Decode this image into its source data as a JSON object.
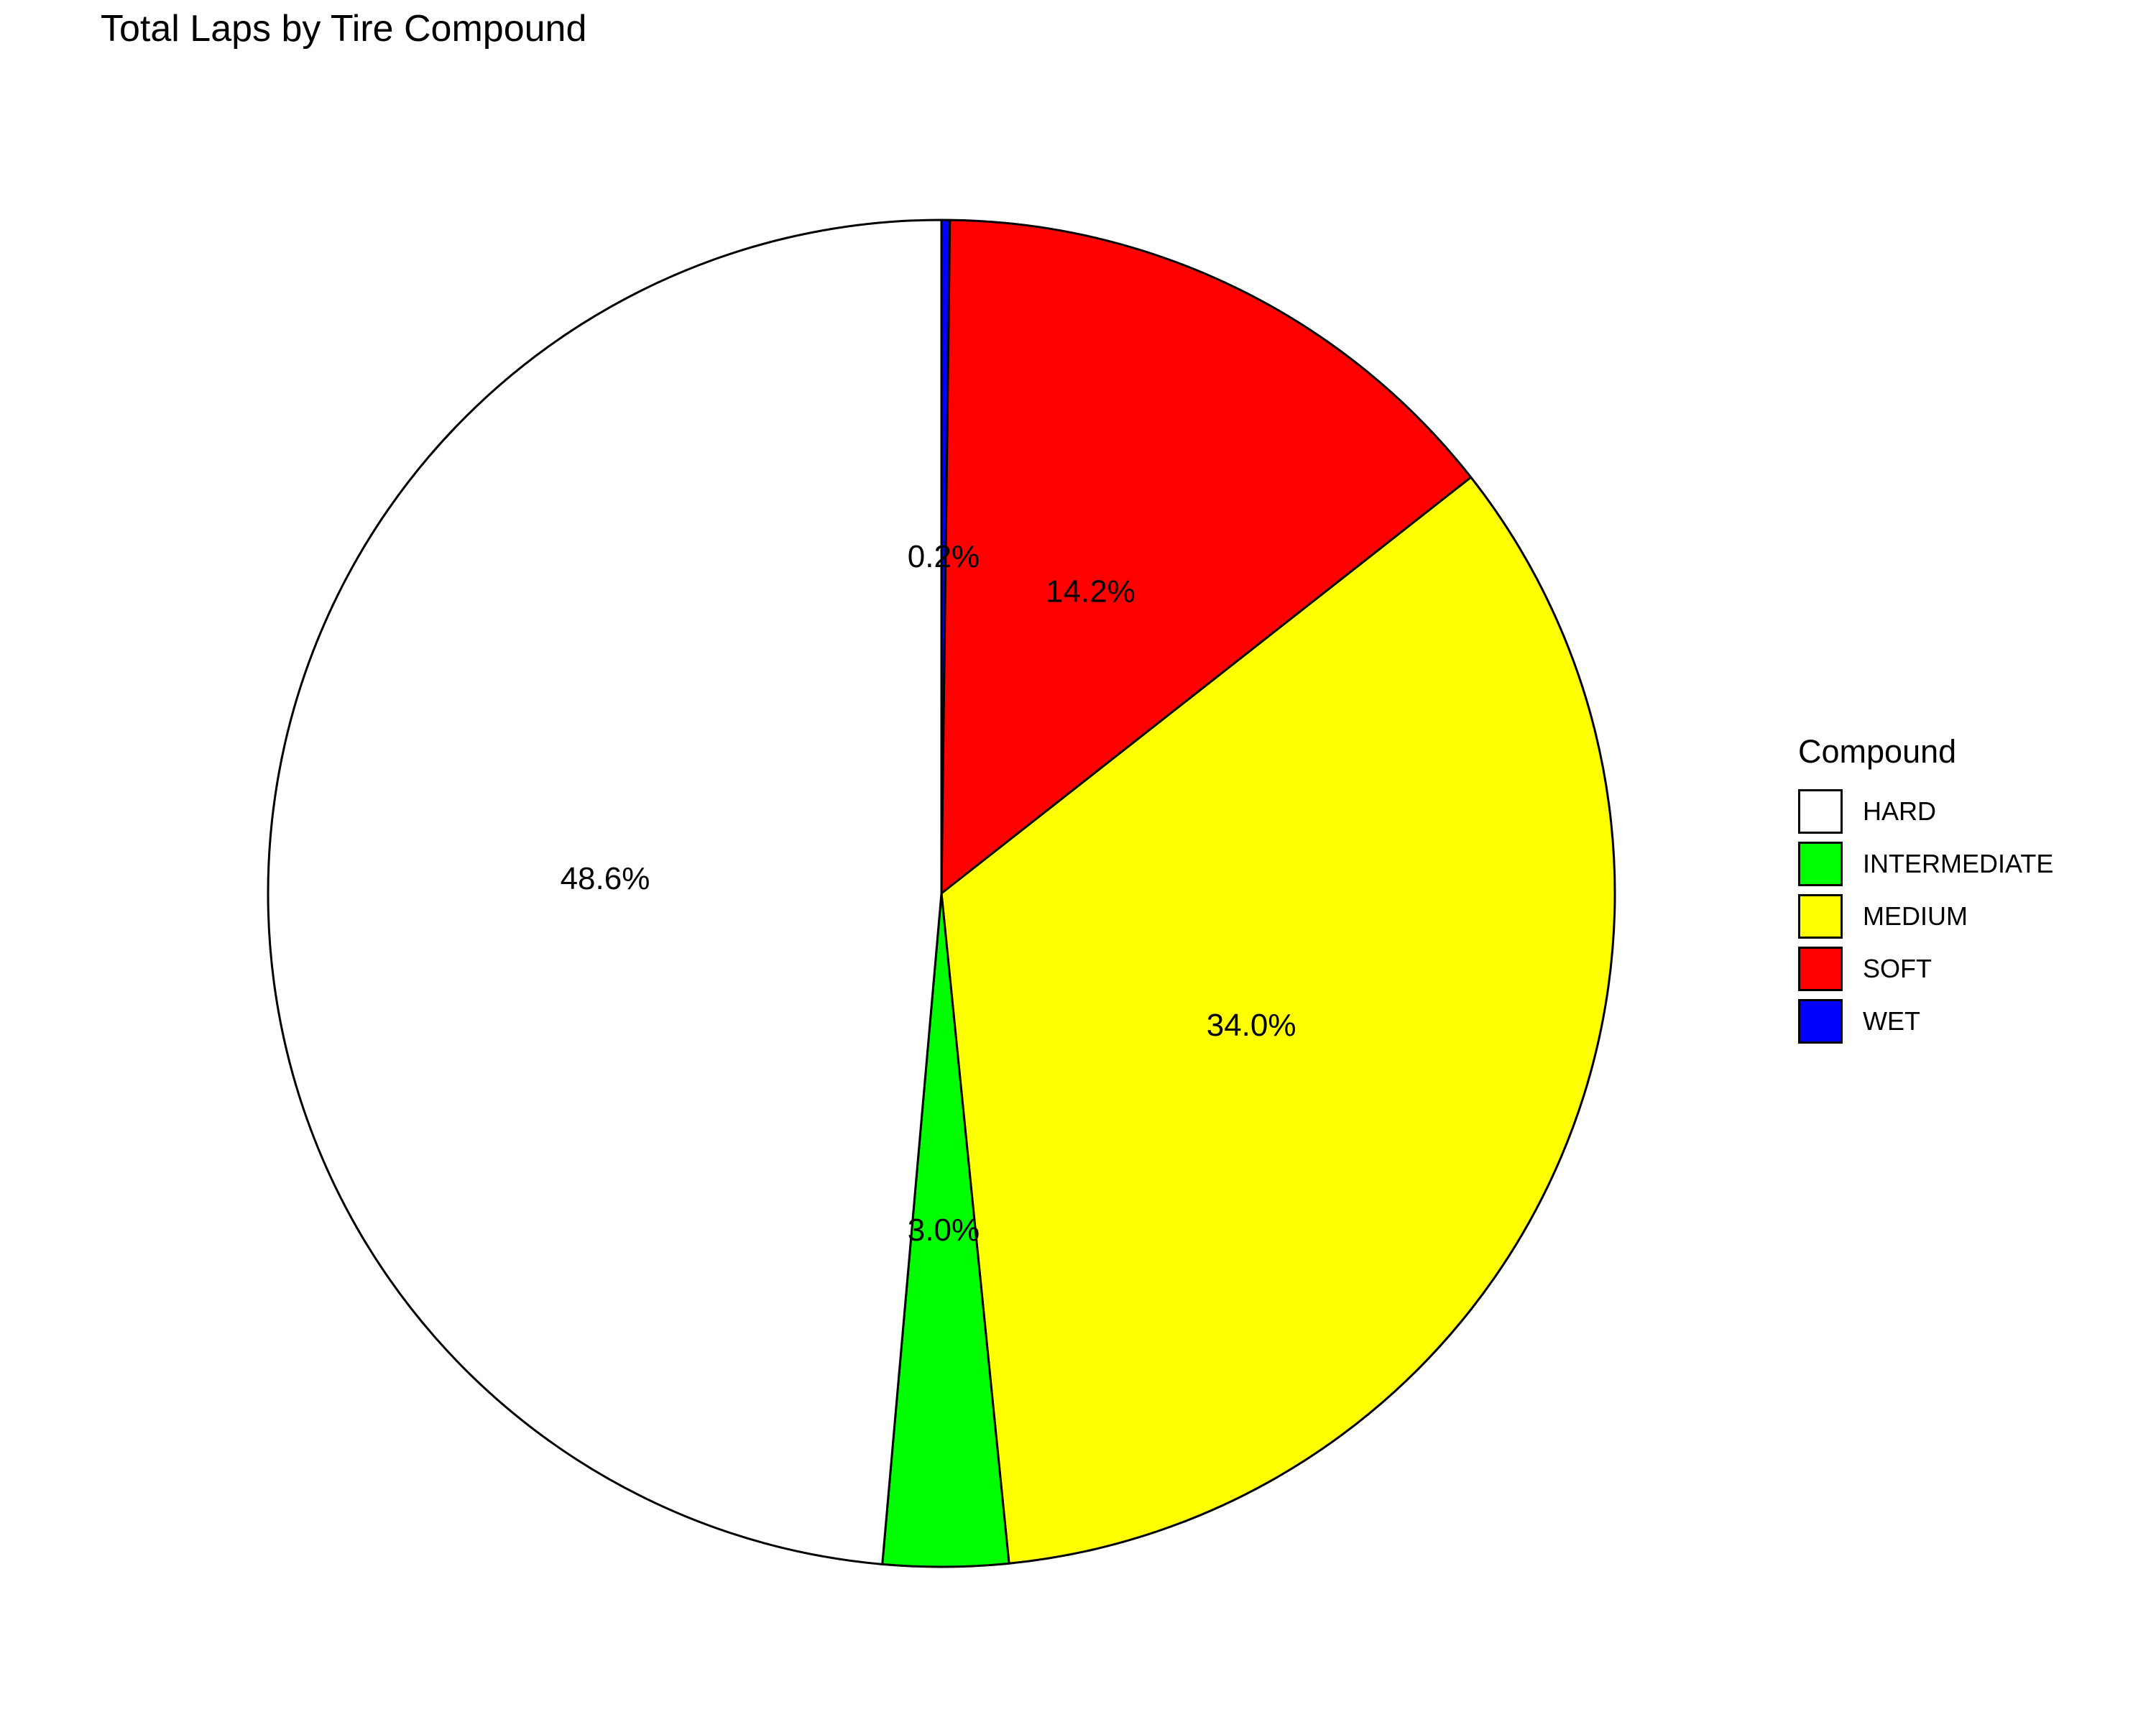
{
  "chart_data": {
    "type": "pie",
    "title": "Total Laps by Tire Compound",
    "legend_title": "Compound",
    "legend_position": "right",
    "slices": [
      {
        "name": "WET",
        "value": 0.2,
        "label": "0.2%",
        "color": "#0000ff"
      },
      {
        "name": "SOFT",
        "value": 14.2,
        "label": "14.2%",
        "color": "#ff0000"
      },
      {
        "name": "MEDIUM",
        "value": 34.0,
        "label": "34.0%",
        "color": "#ffff00"
      },
      {
        "name": "INTERMEDIATE",
        "value": 3.0,
        "label": "3.0%",
        "color": "#00ff00"
      },
      {
        "name": "HARD",
        "value": 48.6,
        "label": "48.6%",
        "color": "#ffffff"
      }
    ],
    "legend": [
      {
        "name": "HARD",
        "color": "#ffffff"
      },
      {
        "name": "INTERMEDIATE",
        "color": "#00ff00"
      },
      {
        "name": "MEDIUM",
        "color": "#ffff00"
      },
      {
        "name": "SOFT",
        "color": "#ff0000"
      },
      {
        "name": "WET",
        "color": "#0000ff"
      }
    ]
  }
}
